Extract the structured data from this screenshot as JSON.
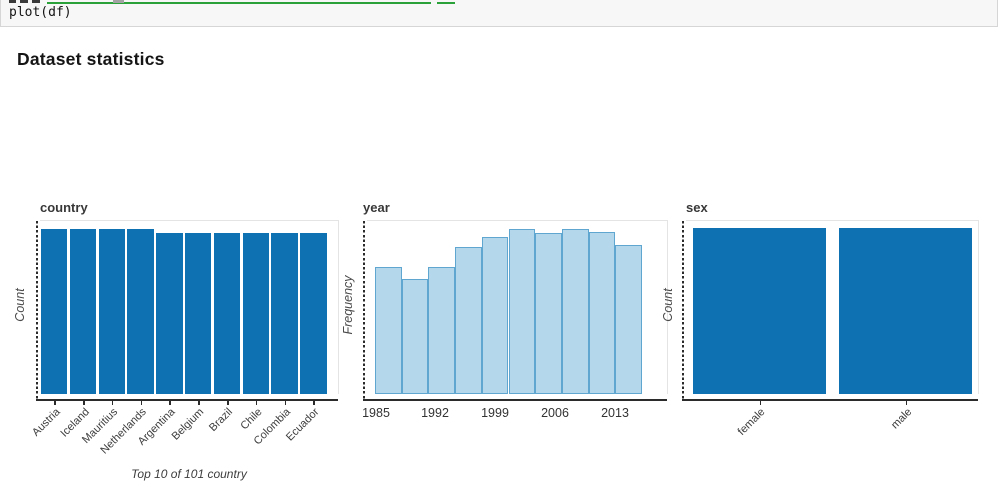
{
  "code_cell": {
    "visible_code": "plot(df)",
    "truncated_line_above": true
  },
  "heading": "Dataset statistics",
  "colors": {
    "bar_blue": "#0e72b2",
    "hist_fill": "#b5d7ec",
    "hist_edge": "#5fa6d1",
    "axis": "#2b2b2b",
    "plot_border": "#e4e4e4",
    "title_text": "#383838",
    "tick_text": "#3d3d3d",
    "label_text": "#4a4a4a",
    "code_bg": "#f7f7f7",
    "code_border": "#d6d6d6",
    "code_text": "#141414",
    "frag_green": "#2aa139",
    "frag_gray": "#a3a3a3",
    "frag_dark": "#3a3a3a"
  },
  "chart_data": [
    {
      "type": "bar",
      "title": "country",
      "ylabel": "Count",
      "xlabel": "Top 10 of 101 country",
      "categories": [
        "Austria",
        "Iceland",
        "Mauritius",
        "Netherlands",
        "Argentina",
        "Belgium",
        "Brazil",
        "Chile",
        "Colombia",
        "Ecuador"
      ],
      "values": [
        1,
        1,
        1,
        1,
        0.975,
        0.975,
        0.975,
        0.975,
        0.975,
        0.975
      ],
      "value_note": "relative bar heights; y axis has no numeric tick labels",
      "grid": "off",
      "legend": "none"
    },
    {
      "type": "histogram",
      "title": "year",
      "ylabel": "Frequency",
      "xlabel": "",
      "x_tick_labels": [
        "1985",
        "1992",
        "1999",
        "2006",
        "2013"
      ],
      "bin_count": 10,
      "x_range": [
        1985,
        2016
      ],
      "values": [
        0.77,
        0.7,
        0.77,
        0.89,
        0.95,
        1.0,
        0.975,
        1.0,
        0.98,
        0.9
      ],
      "value_note": "relative bar heights; y axis has no numeric tick labels",
      "grid": "off",
      "legend": "none"
    },
    {
      "type": "bar",
      "title": "sex",
      "ylabel": "Count",
      "xlabel": "",
      "categories": [
        "female",
        "male"
      ],
      "values": [
        1.0,
        1.0
      ],
      "value_note": "relative bar heights; y axis has no numeric tick labels",
      "grid": "off",
      "legend": "none"
    }
  ]
}
